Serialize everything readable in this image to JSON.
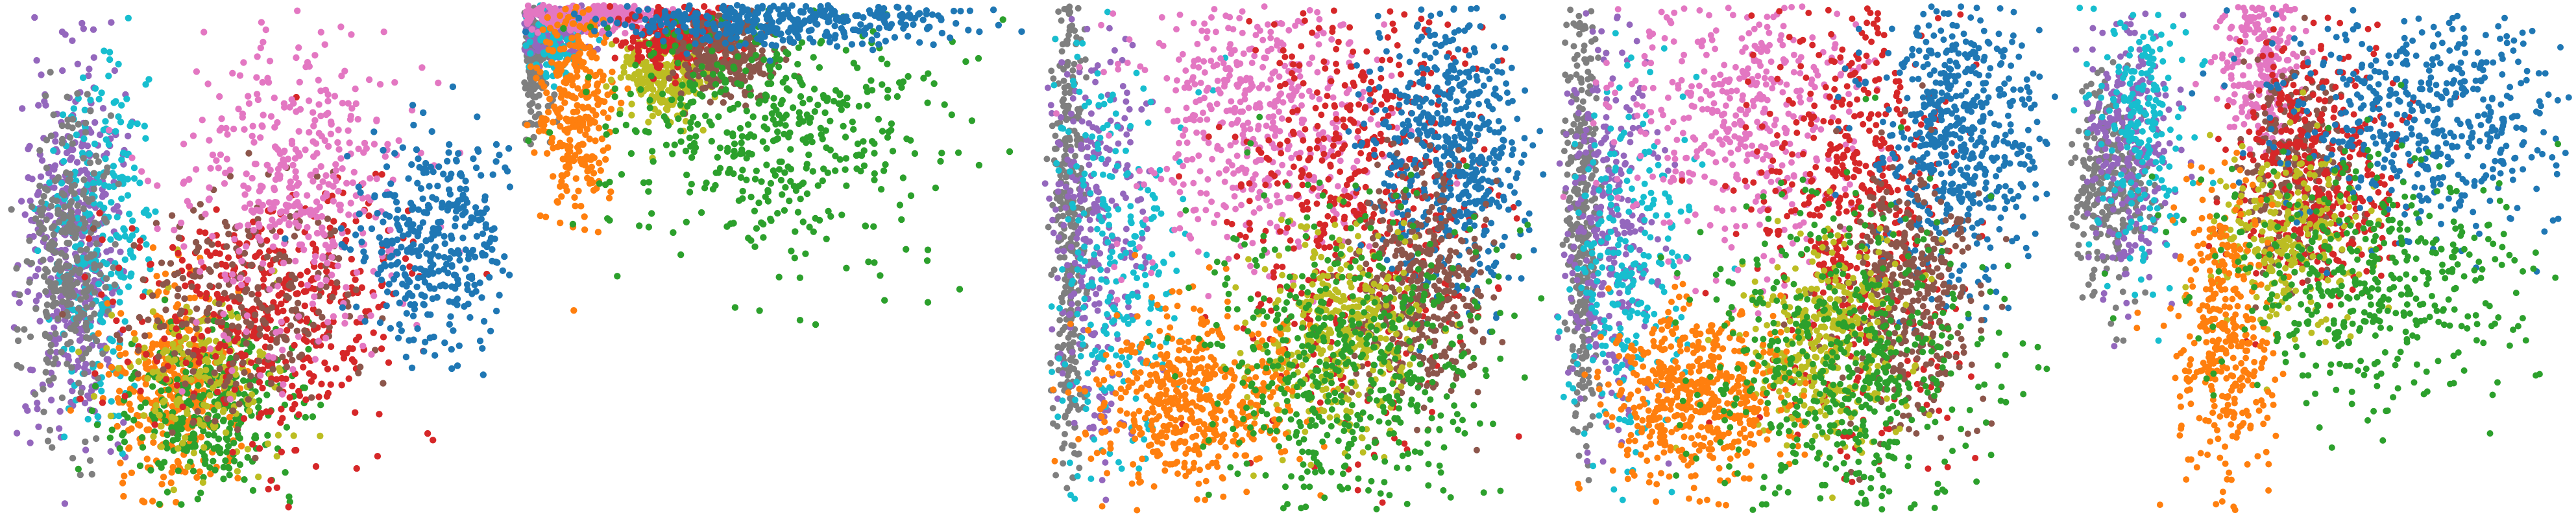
{
  "figure": {
    "title": "",
    "panel_count": 5
  },
  "palette": {
    "blue": "#1f77b4",
    "orange": "#ff7f0e",
    "green": "#2ca02c",
    "red": "#d62728",
    "purple": "#9467bd",
    "brown": "#8c564b",
    "pink": "#e377c2",
    "gray": "#7f7f7f",
    "olive": "#bcbd22",
    "cyan": "#17becf"
  },
  "chart_data": [
    {
      "type": "scatter",
      "title": "",
      "xlabel": "",
      "ylabel": "",
      "axes_visible": false,
      "grid": false,
      "legend": "none",
      "xlim": [
        0,
        100
      ],
      "ylim": [
        0,
        100
      ],
      "clusters": [
        {
          "color": "#9467bd",
          "n": 420,
          "cx": 13,
          "cy": 48,
          "sx": 5,
          "sy": 19
        },
        {
          "color": "#17becf",
          "n": 260,
          "cx": 18,
          "cy": 44,
          "sx": 5,
          "sy": 16
        },
        {
          "color": "#7f7f7f",
          "n": 300,
          "cx": 12,
          "cy": 52,
          "sx": 4,
          "sy": 15
        },
        {
          "color": "#ff7f0e",
          "n": 320,
          "cx": 33,
          "cy": 76,
          "sx": 6,
          "sy": 10
        },
        {
          "color": "#2ca02c",
          "n": 330,
          "cx": 40,
          "cy": 80,
          "sx": 9,
          "sy": 9
        },
        {
          "color": "#bcbd22",
          "n": 180,
          "cx": 38,
          "cy": 72,
          "sx": 8,
          "sy": 9
        },
        {
          "color": "#d62728",
          "n": 420,
          "cx": 52,
          "cy": 62,
          "sx": 14,
          "sy": 12
        },
        {
          "color": "#8c564b",
          "n": 250,
          "cx": 48,
          "cy": 58,
          "sx": 12,
          "sy": 12
        },
        {
          "color": "#e377c2",
          "n": 420,
          "cx": 58,
          "cy": 36,
          "sx": 12,
          "sy": 16
        },
        {
          "color": "#1f77b4",
          "n": 380,
          "cx": 85,
          "cy": 47,
          "sx": 8,
          "sy": 10
        }
      ]
    },
    {
      "type": "scatter",
      "title": "",
      "xlabel": "",
      "ylabel": "",
      "axes_visible": false,
      "grid": false,
      "legend": "none",
      "xlim": [
        0,
        100
      ],
      "ylim": [
        0,
        100
      ],
      "clusters": [
        {
          "color": "#7f7f7f",
          "n": 170,
          "cx": 2,
          "cy": 10,
          "sx": 1.5,
          "sy": 8
        },
        {
          "color": "#9467bd",
          "n": 170,
          "cx": 5,
          "cy": 5,
          "sx": 4,
          "sy": 3
        },
        {
          "color": "#17becf",
          "n": 100,
          "cx": 6,
          "cy": 7,
          "sx": 4,
          "sy": 4
        },
        {
          "color": "#e377c2",
          "n": 300,
          "cx": 13,
          "cy": 2,
          "sx": 9,
          "sy": 1.5
        },
        {
          "color": "#ff7f0e",
          "n": 300,
          "cx": 10,
          "cy": 19,
          "sx": 3.5,
          "sy": 11
        },
        {
          "color": "#bcbd22",
          "n": 220,
          "cx": 27,
          "cy": 14,
          "sx": 4,
          "sy": 4
        },
        {
          "color": "#d62728",
          "n": 280,
          "cx": 30,
          "cy": 6,
          "sx": 5.5,
          "sy": 3.5
        },
        {
          "color": "#8c564b",
          "n": 240,
          "cx": 40,
          "cy": 10,
          "sx": 5,
          "sy": 4
        },
        {
          "color": "#2ca02c",
          "n": 480,
          "cx": 49,
          "cy": 25,
          "sx": 17,
          "sy": 14
        },
        {
          "color": "#1f77b4",
          "n": 400,
          "cx": 51,
          "cy": 3,
          "sx": 18,
          "sy": 2.5
        }
      ]
    },
    {
      "type": "scatter",
      "title": "",
      "xlabel": "",
      "ylabel": "",
      "axes_visible": false,
      "grid": false,
      "legend": "none",
      "xlim": [
        0,
        100
      ],
      "ylim": [
        0,
        100
      ],
      "clusters": [
        {
          "color": "#7f7f7f",
          "n": 360,
          "cx": 5,
          "cy": 40,
          "sx": 1.6,
          "sy": 26
        },
        {
          "color": "#9467bd",
          "n": 300,
          "cx": 10,
          "cy": 45,
          "sx": 5,
          "sy": 22
        },
        {
          "color": "#17becf",
          "n": 260,
          "cx": 14,
          "cy": 52,
          "sx": 7,
          "sy": 20
        },
        {
          "color": "#e377c2",
          "n": 520,
          "cx": 43,
          "cy": 22,
          "sx": 13,
          "sy": 15
        },
        {
          "color": "#d62728",
          "n": 560,
          "cx": 64,
          "cy": 38,
          "sx": 12,
          "sy": 22
        },
        {
          "color": "#1f77b4",
          "n": 560,
          "cx": 82,
          "cy": 28,
          "sx": 8,
          "sy": 14
        },
        {
          "color": "#8c564b",
          "n": 380,
          "cx": 75,
          "cy": 56,
          "sx": 7,
          "sy": 12
        },
        {
          "color": "#bcbd22",
          "n": 360,
          "cx": 58,
          "cy": 65,
          "sx": 8,
          "sy": 10
        },
        {
          "color": "#ff7f0e",
          "n": 520,
          "cx": 30,
          "cy": 78,
          "sx": 10,
          "sy": 9
        },
        {
          "color": "#2ca02c",
          "n": 560,
          "cx": 60,
          "cy": 72,
          "sx": 14,
          "sy": 17
        }
      ]
    },
    {
      "type": "scatter",
      "title": "",
      "xlabel": "",
      "ylabel": "",
      "axes_visible": false,
      "grid": false,
      "legend": "none",
      "xlim": [
        0,
        100
      ],
      "ylim": [
        0,
        100
      ],
      "clusters": [
        {
          "color": "#7f7f7f",
          "n": 360,
          "cx": 5,
          "cy": 40,
          "sx": 1.6,
          "sy": 24
        },
        {
          "color": "#9467bd",
          "n": 300,
          "cx": 10,
          "cy": 44,
          "sx": 5,
          "sy": 20
        },
        {
          "color": "#17becf",
          "n": 260,
          "cx": 14,
          "cy": 50,
          "sx": 7,
          "sy": 18
        },
        {
          "color": "#e377c2",
          "n": 460,
          "cx": 38,
          "cy": 20,
          "sx": 12,
          "sy": 15
        },
        {
          "color": "#d62728",
          "n": 560,
          "cx": 60,
          "cy": 40,
          "sx": 10,
          "sy": 22
        },
        {
          "color": "#1f77b4",
          "n": 560,
          "cx": 80,
          "cy": 26,
          "sx": 8,
          "sy": 14
        },
        {
          "color": "#8c564b",
          "n": 380,
          "cx": 70,
          "cy": 58,
          "sx": 7,
          "sy": 12
        },
        {
          "color": "#bcbd22",
          "n": 360,
          "cx": 54,
          "cy": 66,
          "sx": 8,
          "sy": 10
        },
        {
          "color": "#ff7f0e",
          "n": 520,
          "cx": 28,
          "cy": 78,
          "sx": 9,
          "sy": 9
        },
        {
          "color": "#2ca02c",
          "n": 560,
          "cx": 58,
          "cy": 72,
          "sx": 14,
          "sy": 17
        }
      ]
    },
    {
      "type": "scatter",
      "title": "",
      "xlabel": "",
      "ylabel": "",
      "axes_visible": false,
      "grid": false,
      "legend": "none",
      "xlim": [
        0,
        100
      ],
      "ylim": [
        0,
        100
      ],
      "clusters": [
        {
          "color": "#7f7f7f",
          "n": 280,
          "cx": 8,
          "cy": 36,
          "sx": 4,
          "sy": 10
        },
        {
          "color": "#9467bd",
          "n": 260,
          "cx": 12,
          "cy": 28,
          "sx": 5,
          "sy": 14
        },
        {
          "color": "#17becf",
          "n": 220,
          "cx": 14,
          "cy": 24,
          "sx": 5,
          "sy": 14
        },
        {
          "color": "#e377c2",
          "n": 260,
          "cx": 38,
          "cy": 10,
          "sx": 4,
          "sy": 9
        },
        {
          "color": "#8c564b",
          "n": 260,
          "cx": 45,
          "cy": 32,
          "sx": 5,
          "sy": 10
        },
        {
          "color": "#d62728",
          "n": 420,
          "cx": 50,
          "cy": 32,
          "sx": 8,
          "sy": 13
        },
        {
          "color": "#bcbd22",
          "n": 260,
          "cx": 44,
          "cy": 45,
          "sx": 8,
          "sy": 9
        },
        {
          "color": "#1f77b4",
          "n": 520,
          "cx": 72,
          "cy": 22,
          "sx": 15,
          "sy": 11
        },
        {
          "color": "#ff7f0e",
          "n": 360,
          "cx": 31,
          "cy": 64,
          "sx": 5,
          "sy": 15
        },
        {
          "color": "#2ca02c",
          "n": 460,
          "cx": 60,
          "cy": 55,
          "sx": 16,
          "sy": 12
        }
      ]
    }
  ]
}
